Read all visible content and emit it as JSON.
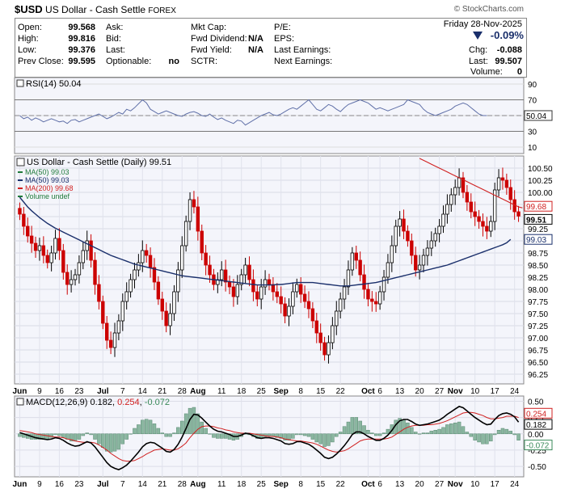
{
  "header": {
    "symbol": "$USD",
    "name": "US Dollar - Cash Settle",
    "exchange": "FOREX",
    "watermark": "© StockCharts.com",
    "date": "Friday  28-Nov-2025",
    "change_pct": "-0.09%",
    "change_arrow": "down-triangle-icon",
    "chg_label": "Chg:",
    "chg_value": "-0.088",
    "last_label": "Last:",
    "last_value": "99.507",
    "volume_label": "Volume:",
    "volume_value": "0"
  },
  "quote": [
    {
      "label": "Open:",
      "value": "99.568"
    },
    {
      "label": "High:",
      "value": "99.816"
    },
    {
      "label": "Low:",
      "value": "99.376"
    },
    {
      "label": "Prev Close:",
      "value": "99.595"
    }
  ],
  "quote2": [
    "Ask:",
    "Bid:",
    "Last:",
    "Optionable:"
  ],
  "optionable_value": "no",
  "quote3": [
    {
      "label": "Mkt Cap:",
      "value": ""
    },
    {
      "label": "Fwd Dividend:",
      "value": "N/A"
    },
    {
      "label": "Fwd Yield:",
      "value": "N/A"
    },
    {
      "label": "SCTR:",
      "value": ""
    }
  ],
  "quote4": [
    "P/E:",
    "EPS:",
    "Last Earnings:",
    "Next Earnings:"
  ],
  "colors": {
    "up": "#000000",
    "down": "#cc0000",
    "ma50": "#1a2f6b",
    "ma200": "#d02020",
    "rsi": "#6070a8",
    "hist": "#8ab6a0",
    "bg": "#f4f5fb"
  },
  "chart_data": [
    {
      "type": "line",
      "panel": "rsi",
      "legend": "RSI(14) 50.04",
      "y_ticks": [
        10,
        30,
        50,
        70,
        90
      ],
      "reference_lines": [
        30,
        70
      ],
      "last_value": 50.04,
      "values": [
        50,
        46,
        48,
        44,
        47,
        45,
        42,
        44,
        46,
        44,
        42,
        43,
        40,
        44,
        45,
        42,
        44,
        46,
        48,
        50,
        52,
        49,
        46,
        48,
        51,
        54,
        52,
        58,
        56,
        60,
        65,
        70,
        66,
        58,
        55,
        52,
        54,
        56,
        54,
        52,
        50,
        49,
        52,
        54,
        55,
        53,
        50,
        49,
        52,
        48,
        45,
        47,
        44,
        42,
        40,
        44,
        43,
        38,
        41,
        44,
        47,
        50,
        52,
        54,
        51,
        50,
        52,
        55,
        58,
        60,
        58,
        62,
        66,
        70,
        64,
        58,
        56,
        60,
        64,
        62,
        58,
        55,
        60,
        64,
        66,
        68,
        70,
        68,
        66,
        62,
        58,
        60,
        58,
        56,
        58,
        60,
        62,
        64,
        70,
        68,
        66,
        64,
        58,
        54,
        52,
        50,
        52,
        54,
        56,
        58,
        62,
        64,
        66,
        64,
        60,
        56,
        52,
        50,
        50
      ]
    },
    {
      "type": "candlestick",
      "panel": "price",
      "legend_title": "US Dollar - Cash Settle (Daily) 99.51",
      "legend_items": [
        "MA(50) 99.03",
        "MA(50) 99.03",
        "MA(200) 99.68",
        "Volume undef"
      ],
      "y_ticks": [
        96.25,
        96.5,
        96.75,
        97.0,
        97.25,
        97.5,
        97.75,
        98.0,
        98.25,
        98.5,
        98.75,
        99.0,
        99.25,
        99.5,
        99.75,
        100.0,
        100.25,
        100.5
      ],
      "y_range": [
        96.05,
        100.75
      ],
      "last_labels": [
        {
          "text": "99.68",
          "value": 99.68
        },
        {
          "text": "99.51",
          "value": 99.51
        },
        {
          "text": "99.03",
          "value": 99.03
        }
      ],
      "x_labels": [
        {
          "text": "Jun",
          "i": 0,
          "bold": true
        },
        {
          "text": "9",
          "i": 5
        },
        {
          "text": "16",
          "i": 10
        },
        {
          "text": "23",
          "i": 15
        },
        {
          "text": "Jul",
          "i": 21,
          "bold": true
        },
        {
          "text": "7",
          "i": 26
        },
        {
          "text": "14",
          "i": 31
        },
        {
          "text": "21",
          "i": 36
        },
        {
          "text": "28",
          "i": 41
        },
        {
          "text": "Aug",
          "i": 45,
          "bold": true
        },
        {
          "text": "11",
          "i": 51
        },
        {
          "text": "18",
          "i": 56
        },
        {
          "text": "25",
          "i": 61
        },
        {
          "text": "Sep",
          "i": 66,
          "bold": true
        },
        {
          "text": "8",
          "i": 71
        },
        {
          "text": "15",
          "i": 76
        },
        {
          "text": "22",
          "i": 81
        },
        {
          "text": "Oct",
          "i": 88,
          "bold": true
        },
        {
          "text": "6",
          "i": 91
        },
        {
          "text": "13",
          "i": 96
        },
        {
          "text": "20",
          "i": 101
        },
        {
          "text": "27",
          "i": 106
        },
        {
          "text": "Nov",
          "i": 110,
          "bold": true
        },
        {
          "text": "10",
          "i": 115
        },
        {
          "text": "17",
          "i": 120
        },
        {
          "text": "24",
          "i": 125
        }
      ],
      "close": [
        99.55,
        99.3,
        99.1,
        98.95,
        98.8,
        98.9,
        98.7,
        98.55,
        98.75,
        99.05,
        98.8,
        98.35,
        98.1,
        98.2,
        98.3,
        98.55,
        98.8,
        99.0,
        98.6,
        98.1,
        97.75,
        97.3,
        96.95,
        96.8,
        97.1,
        97.35,
        97.75,
        97.95,
        98.2,
        98.4,
        98.55,
        98.8,
        98.7,
        98.45,
        98.15,
        97.8,
        97.55,
        97.25,
        97.5,
        97.95,
        98.4,
        98.9,
        99.4,
        99.85,
        99.7,
        99.2,
        98.75,
        98.5,
        98.3,
        98.1,
        98.2,
        98.4,
        98.15,
        98.05,
        97.85,
        98.1,
        98.3,
        98.5,
        98.2,
        97.95,
        97.8,
        98.05,
        98.2,
        98.1,
        97.95,
        97.85,
        97.7,
        97.45,
        97.65,
        97.95,
        98.1,
        97.9,
        97.75,
        97.6,
        97.35,
        97.1,
        96.9,
        96.65,
        96.9,
        97.25,
        97.55,
        97.8,
        98.05,
        98.4,
        98.75,
        98.6,
        98.3,
        98.0,
        97.8,
        97.75,
        97.7,
        97.95,
        98.25,
        98.55,
        98.9,
        99.3,
        99.45,
        99.2,
        99.0,
        98.7,
        98.4,
        98.5,
        98.7,
        98.85,
        99.0,
        99.15,
        99.3,
        99.55,
        99.75,
        99.95,
        100.1,
        100.3,
        100.0,
        99.8,
        99.6,
        99.5,
        99.4,
        99.3,
        99.2,
        99.4,
        100.05,
        100.3,
        100.25,
        100.1,
        99.85,
        99.6,
        99.51
      ],
      "ma50": [
        99.9,
        99.8,
        99.7,
        99.62,
        99.55,
        99.48,
        99.42,
        99.36,
        99.31,
        99.26,
        99.22,
        99.18,
        99.14,
        99.1,
        99.06,
        99.02,
        98.98,
        98.94,
        98.9,
        98.86,
        98.82,
        98.78,
        98.74,
        98.7,
        98.67,
        98.64,
        98.61,
        98.58,
        98.55,
        98.52,
        98.5,
        98.48,
        98.46,
        98.44,
        98.42,
        98.4,
        98.38,
        98.36,
        98.34,
        98.32,
        98.3,
        98.28,
        98.27,
        98.26,
        98.25,
        98.24,
        98.23,
        98.22,
        98.21,
        98.2,
        98.19,
        98.18,
        98.17,
        98.16,
        98.15,
        98.14,
        98.13,
        98.12,
        98.11,
        98.1,
        98.09,
        98.09,
        98.09,
        98.09,
        98.09,
        98.1,
        98.1,
        98.11,
        98.12,
        98.13,
        98.14,
        98.14,
        98.14,
        98.14,
        98.14,
        98.13,
        98.12,
        98.11,
        98.1,
        98.09,
        98.08,
        98.07,
        98.07,
        98.07,
        98.08,
        98.09,
        98.1,
        98.11,
        98.12,
        98.13,
        98.14,
        98.16,
        98.18,
        98.2,
        98.22,
        98.24,
        98.26,
        98.28,
        98.3,
        98.32,
        98.34,
        98.36,
        98.38,
        98.4,
        98.42,
        98.44,
        98.46,
        98.48,
        98.5,
        98.53,
        98.56,
        98.59,
        98.62,
        98.65,
        98.68,
        98.71,
        98.74,
        98.77,
        98.8,
        98.83,
        98.86,
        98.89,
        98.92,
        98.96,
        99.03
      ],
      "ma200_start_index": 101,
      "ma200": [
        100.7,
        100.66,
        100.62,
        100.58,
        100.54,
        100.5,
        100.46,
        100.42,
        100.38,
        100.34,
        100.3,
        100.26,
        100.22,
        100.18,
        100.14,
        100.1,
        100.06,
        100.02,
        99.98,
        99.94,
        99.9,
        99.86,
        99.82,
        99.78,
        99.74,
        99.7,
        99.68
      ]
    },
    {
      "type": "line+histogram",
      "panel": "macd",
      "legend_prefix": "MACD(12,26,9)",
      "legend_macd": "0.182",
      "legend_signal": "0.254",
      "legend_hist": "-0.072",
      "y_ticks": [
        -0.5,
        -0.25,
        0.0,
        0.25,
        0.5
      ],
      "y_range": [
        -0.66,
        0.58
      ],
      "last_labels": [
        {
          "text": "0.254",
          "value": 0.254
        },
        {
          "text": "0.182",
          "value": 0.182
        },
        {
          "text": "-0.072",
          "value": -0.072
        }
      ],
      "macd": [
        0.02,
        0.0,
        -0.02,
        -0.04,
        -0.06,
        -0.07,
        -0.08,
        -0.09,
        -0.08,
        -0.06,
        -0.07,
        -0.1,
        -0.14,
        -0.17,
        -0.19,
        -0.18,
        -0.15,
        -0.12,
        -0.14,
        -0.2,
        -0.28,
        -0.36,
        -0.44,
        -0.5,
        -0.53,
        -0.55,
        -0.52,
        -0.48,
        -0.42,
        -0.35,
        -0.28,
        -0.2,
        -0.15,
        -0.13,
        -0.14,
        -0.18,
        -0.22,
        -0.27,
        -0.28,
        -0.24,
        -0.16,
        -0.05,
        0.08,
        0.22,
        0.3,
        0.29,
        0.24,
        0.18,
        0.12,
        0.07,
        0.04,
        0.03,
        0.01,
        -0.01,
        -0.04,
        -0.04,
        -0.02,
        0.01,
        0.0,
        -0.03,
        -0.06,
        -0.07,
        -0.06,
        -0.06,
        -0.07,
        -0.09,
        -0.11,
        -0.15,
        -0.16,
        -0.15,
        -0.12,
        -0.12,
        -0.14,
        -0.16,
        -0.2,
        -0.25,
        -0.3,
        -0.36,
        -0.38,
        -0.36,
        -0.31,
        -0.25,
        -0.18,
        -0.1,
        -0.01,
        0.03,
        0.03,
        0.0,
        -0.04,
        -0.07,
        -0.1,
        -0.1,
        -0.07,
        -0.02,
        0.05,
        0.14,
        0.2,
        0.22,
        0.22,
        0.19,
        0.15,
        0.13,
        0.14,
        0.15,
        0.17,
        0.19,
        0.21,
        0.25,
        0.3,
        0.34,
        0.38,
        0.42,
        0.4,
        0.35,
        0.3,
        0.25,
        0.21,
        0.17,
        0.14,
        0.15,
        0.22,
        0.28,
        0.31,
        0.32,
        0.3,
        0.26,
        0.18
      ],
      "signal": [
        0.05,
        0.04,
        0.03,
        0.02,
        0.0,
        -0.01,
        -0.02,
        -0.03,
        -0.04,
        -0.05,
        -0.05,
        -0.06,
        -0.08,
        -0.09,
        -0.11,
        -0.12,
        -0.13,
        -0.13,
        -0.13,
        -0.14,
        -0.17,
        -0.21,
        -0.25,
        -0.3,
        -0.34,
        -0.38,
        -0.41,
        -0.42,
        -0.42,
        -0.41,
        -0.38,
        -0.35,
        -0.31,
        -0.28,
        -0.25,
        -0.24,
        -0.23,
        -0.24,
        -0.25,
        -0.25,
        -0.23,
        -0.19,
        -0.14,
        -0.06,
        0.01,
        0.07,
        0.11,
        0.12,
        0.12,
        0.11,
        0.09,
        0.08,
        0.06,
        0.05,
        0.03,
        0.02,
        0.01,
        0.01,
        0.01,
        0.0,
        -0.01,
        -0.02,
        -0.03,
        -0.04,
        -0.04,
        -0.05,
        -0.06,
        -0.08,
        -0.09,
        -0.1,
        -0.11,
        -0.11,
        -0.12,
        -0.13,
        -0.14,
        -0.16,
        -0.19,
        -0.22,
        -0.25,
        -0.27,
        -0.28,
        -0.27,
        -0.26,
        -0.23,
        -0.19,
        -0.15,
        -0.11,
        -0.09,
        -0.08,
        -0.08,
        -0.08,
        -0.08,
        -0.08,
        -0.07,
        -0.05,
        -0.01,
        0.03,
        0.07,
        0.1,
        0.12,
        0.13,
        0.13,
        0.13,
        0.14,
        0.14,
        0.15,
        0.16,
        0.18,
        0.2,
        0.23,
        0.26,
        0.29,
        0.32,
        0.33,
        0.33,
        0.32,
        0.3,
        0.28,
        0.25,
        0.23,
        0.23,
        0.24,
        0.25,
        0.27,
        0.27,
        0.27,
        0.25
      ],
      "x_labels": [
        {
          "text": "Jun",
          "i": 0,
          "bold": true
        },
        {
          "text": "9",
          "i": 5
        },
        {
          "text": "16",
          "i": 10
        },
        {
          "text": "23",
          "i": 15
        },
        {
          "text": "Jul",
          "i": 21,
          "bold": true
        },
        {
          "text": "7",
          "i": 26
        },
        {
          "text": "14",
          "i": 31
        },
        {
          "text": "21",
          "i": 36
        },
        {
          "text": "28",
          "i": 41
        },
        {
          "text": "Aug",
          "i": 45,
          "bold": true
        },
        {
          "text": "11",
          "i": 51
        },
        {
          "text": "18",
          "i": 56
        },
        {
          "text": "25",
          "i": 61
        },
        {
          "text": "Sep",
          "i": 66,
          "bold": true
        },
        {
          "text": "8",
          "i": 71
        },
        {
          "text": "15",
          "i": 76
        },
        {
          "text": "22",
          "i": 81
        },
        {
          "text": "Oct",
          "i": 88,
          "bold": true
        },
        {
          "text": "6",
          "i": 91
        },
        {
          "text": "13",
          "i": 96
        },
        {
          "text": "20",
          "i": 101
        },
        {
          "text": "27",
          "i": 106
        },
        {
          "text": "Nov",
          "i": 110,
          "bold": true
        },
        {
          "text": "10",
          "i": 115
        },
        {
          "text": "17",
          "i": 120
        },
        {
          "text": "24",
          "i": 125
        }
      ]
    }
  ]
}
